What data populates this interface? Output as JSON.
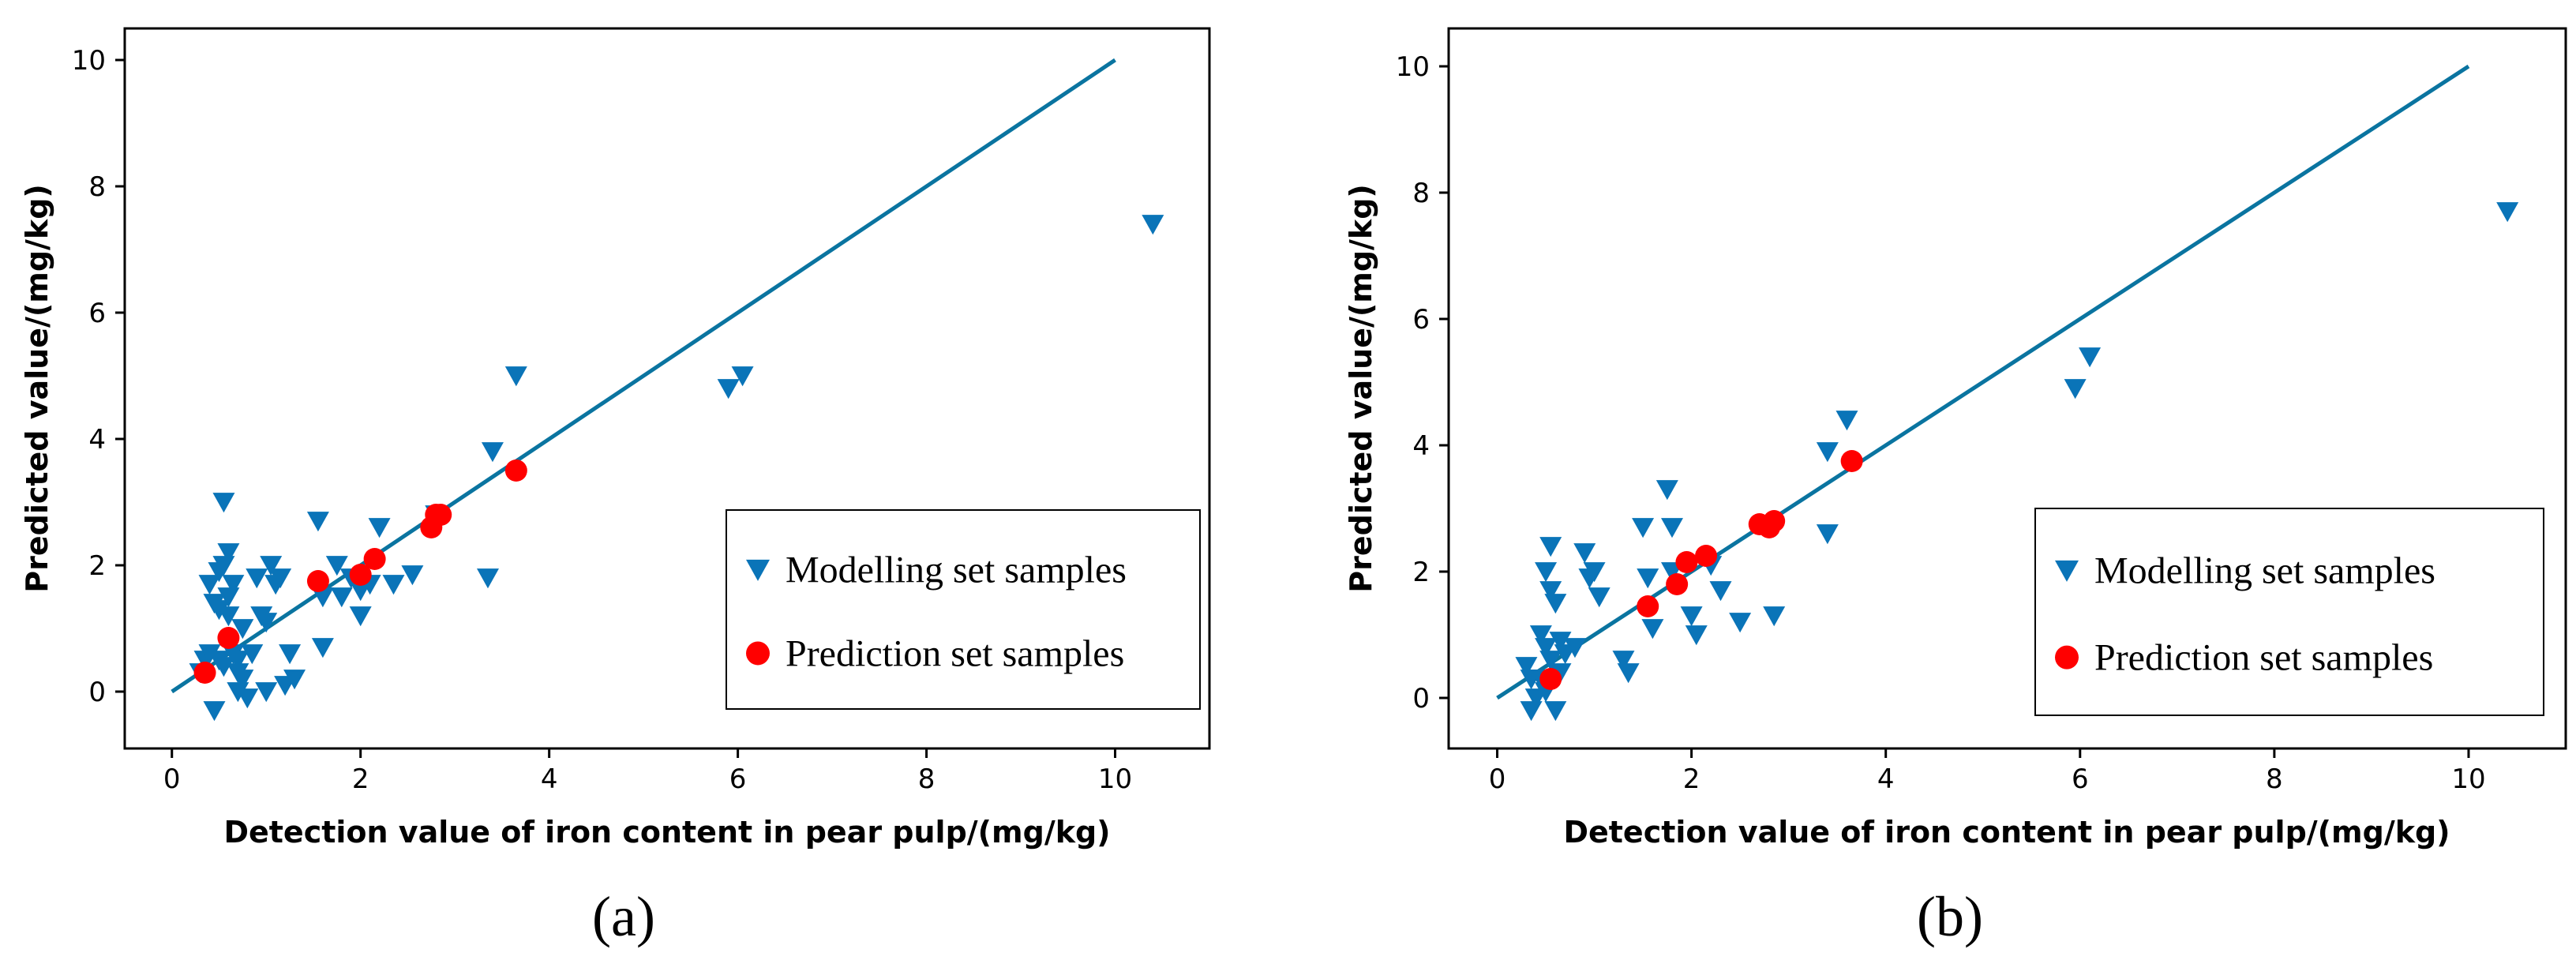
{
  "colors": {
    "modelling": "#0a74b8",
    "prediction": "#ff0000",
    "line": "#0a74a0"
  },
  "chart_data": [
    {
      "type": "scatter",
      "panel_label": "(a)",
      "xlabel": "Detection value of iron content in pear pulp/(mg/kg)",
      "ylabel": "Predicted value/(mg/kg)",
      "xlim": [
        -0.5,
        11.0
      ],
      "ylim": [
        -0.9,
        10.5
      ],
      "xticks": [
        "0",
        "2",
        "4",
        "6",
        "8",
        "10"
      ],
      "yticks": [
        "0",
        "2",
        "4",
        "6",
        "8",
        "10"
      ],
      "legend_position": "lower-right",
      "line": {
        "x": [
          0,
          10
        ],
        "y": [
          0,
          10
        ]
      },
      "series": [
        {
          "name": "Modelling set samples",
          "marker": "triangle-down",
          "points": [
            [
              0.3,
              0.3
            ],
            [
              0.35,
              0.5
            ],
            [
              0.4,
              0.6
            ],
            [
              0.4,
              1.7
            ],
            [
              0.45,
              1.4
            ],
            [
              0.45,
              -0.3
            ],
            [
              0.5,
              1.3
            ],
            [
              0.5,
              1.9
            ],
            [
              0.5,
              0.5
            ],
            [
              0.55,
              2.0
            ],
            [
              0.55,
              3.0
            ],
            [
              0.55,
              0.4
            ],
            [
              0.6,
              2.2
            ],
            [
              0.6,
              1.5
            ],
            [
              0.6,
              1.2
            ],
            [
              0.65,
              1.7
            ],
            [
              0.65,
              0.6
            ],
            [
              0.7,
              0.5
            ],
            [
              0.7,
              0.3
            ],
            [
              0.7,
              0.0
            ],
            [
              0.75,
              1.0
            ],
            [
              0.75,
              0.2
            ],
            [
              0.8,
              -0.1
            ],
            [
              0.85,
              0.6
            ],
            [
              0.9,
              1.8
            ],
            [
              0.95,
              1.2
            ],
            [
              1.0,
              0.0
            ],
            [
              1.0,
              1.1
            ],
            [
              1.05,
              2.0
            ],
            [
              1.1,
              1.7
            ],
            [
              1.15,
              1.8
            ],
            [
              1.2,
              0.1
            ],
            [
              1.25,
              0.6
            ],
            [
              1.3,
              0.2
            ],
            [
              1.55,
              2.7
            ],
            [
              1.6,
              1.5
            ],
            [
              1.6,
              0.7
            ],
            [
              1.75,
              2.0
            ],
            [
              1.8,
              1.5
            ],
            [
              1.9,
              1.8
            ],
            [
              2.0,
              1.6
            ],
            [
              2.0,
              1.2
            ],
            [
              2.1,
              1.7
            ],
            [
              2.2,
              2.6
            ],
            [
              2.35,
              1.7
            ],
            [
              2.55,
              1.85
            ],
            [
              2.8,
              2.8
            ],
            [
              3.35,
              1.8
            ],
            [
              3.4,
              3.8
            ],
            [
              3.65,
              5.0
            ],
            [
              5.9,
              4.8
            ],
            [
              6.05,
              5.0
            ],
            [
              10.4,
              7.4
            ]
          ]
        },
        {
          "name": "Prediction set samples",
          "marker": "circle",
          "points": [
            [
              0.35,
              0.3
            ],
            [
              0.6,
              0.85
            ],
            [
              1.55,
              1.75
            ],
            [
              2.0,
              1.85
            ],
            [
              2.15,
              2.1
            ],
            [
              2.75,
              2.6
            ],
            [
              2.8,
              2.8
            ],
            [
              2.85,
              2.8
            ],
            [
              3.65,
              3.5
            ]
          ]
        }
      ]
    },
    {
      "type": "scatter",
      "panel_label": "(b)",
      "xlabel": "Detection value of iron content in pear pulp/(mg/kg)",
      "ylabel": "Predicted value/(mg/kg)",
      "xlim": [
        -0.5,
        11.0
      ],
      "ylim": [
        -0.8,
        10.6
      ],
      "xticks": [
        "0",
        "2",
        "4",
        "6",
        "8",
        "10"
      ],
      "yticks": [
        "0",
        "2",
        "4",
        "6",
        "8",
        "10"
      ],
      "legend_position": "lower-right",
      "line": {
        "x": [
          0,
          10
        ],
        "y": [
          0,
          10
        ]
      },
      "series": [
        {
          "name": "Modelling set samples",
          "marker": "triangle-down",
          "points": [
            [
              0.3,
              0.5
            ],
            [
              0.35,
              0.3
            ],
            [
              0.35,
              -0.2
            ],
            [
              0.4,
              0.0
            ],
            [
              0.45,
              1.0
            ],
            [
              0.45,
              0.3
            ],
            [
              0.5,
              2.0
            ],
            [
              0.5,
              0.8
            ],
            [
              0.5,
              0.1
            ],
            [
              0.55,
              2.4
            ],
            [
              0.55,
              1.7
            ],
            [
              0.55,
              0.6
            ],
            [
              0.6,
              1.5
            ],
            [
              0.6,
              -0.2
            ],
            [
              0.65,
              0.4
            ],
            [
              0.65,
              0.9
            ],
            [
              0.7,
              0.7
            ],
            [
              0.8,
              0.8
            ],
            [
              0.9,
              2.3
            ],
            [
              0.95,
              1.9
            ],
            [
              1.0,
              2.0
            ],
            [
              1.05,
              1.6
            ],
            [
              1.3,
              0.6
            ],
            [
              1.35,
              0.4
            ],
            [
              1.5,
              2.7
            ],
            [
              1.55,
              1.9
            ],
            [
              1.6,
              1.1
            ],
            [
              1.75,
              3.3
            ],
            [
              1.8,
              2.7
            ],
            [
              1.8,
              2.0
            ],
            [
              2.0,
              1.3
            ],
            [
              2.05,
              1.0
            ],
            [
              2.2,
              2.1
            ],
            [
              2.3,
              1.7
            ],
            [
              2.5,
              1.2
            ],
            [
              2.85,
              1.3
            ],
            [
              3.4,
              2.6
            ],
            [
              3.4,
              3.9
            ],
            [
              3.6,
              4.4
            ],
            [
              5.95,
              4.9
            ],
            [
              6.1,
              5.4
            ],
            [
              10.4,
              7.7
            ]
          ]
        },
        {
          "name": "Prediction set samples",
          "marker": "circle",
          "points": [
            [
              0.55,
              0.3
            ],
            [
              1.55,
              1.45
            ],
            [
              1.85,
              1.8
            ],
            [
              1.95,
              2.15
            ],
            [
              2.15,
              2.25
            ],
            [
              2.7,
              2.75
            ],
            [
              2.8,
              2.7
            ],
            [
              2.85,
              2.8
            ],
            [
              3.65,
              3.75
            ]
          ]
        }
      ]
    }
  ]
}
